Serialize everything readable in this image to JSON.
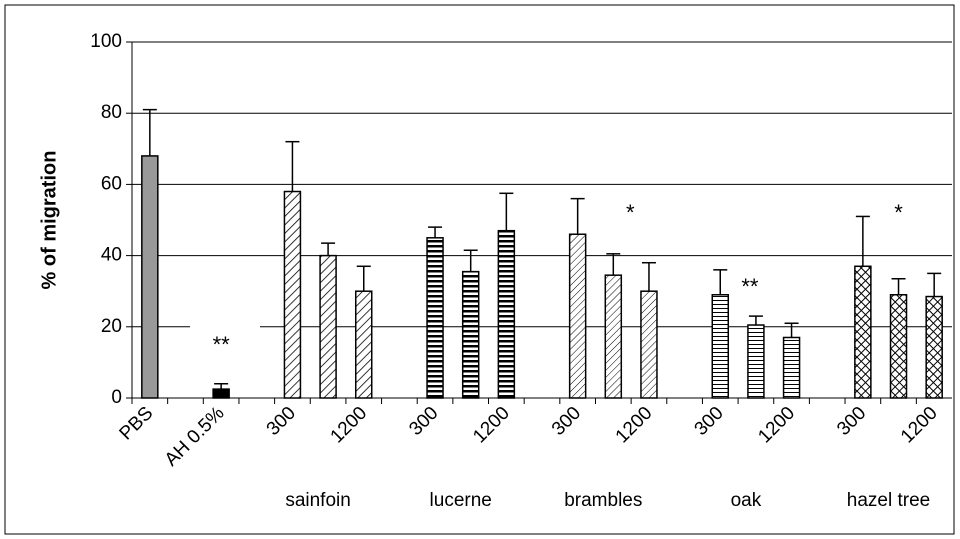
{
  "chart_data": {
    "type": "bar",
    "y_label": "% of migration",
    "categories": [
      "PBS",
      null,
      "AH 0.5%",
      null,
      "300",
      null,
      "1200",
      null,
      "300",
      null,
      "1200",
      null,
      "300",
      null,
      "1200",
      null,
      "300",
      null,
      "1200",
      null,
      "300",
      null,
      "1200"
    ],
    "values": [
      68,
      null,
      2.5,
      null,
      58,
      40,
      30,
      null,
      45,
      35.5,
      47,
      null,
      46,
      34.5,
      30,
      null,
      29,
      20.5,
      17,
      null,
      37,
      29,
      28.5
    ],
    "errors": [
      13,
      null,
      1.5,
      null,
      14,
      3.5,
      7,
      null,
      3,
      6,
      10.5,
      null,
      10,
      6,
      8,
      null,
      7,
      2.5,
      4,
      null,
      14,
      4.5,
      6.5
    ],
    "groups": [
      "sainfoin",
      "lucerne",
      "brambles",
      "oak",
      "hazel tree"
    ],
    "annotations": [
      "**",
      "*",
      "**",
      "*"
    ],
    "ylim": [
      0,
      100
    ],
    "yticks": [
      0,
      20,
      40,
      60,
      80,
      100
    ],
    "grid": true
  }
}
